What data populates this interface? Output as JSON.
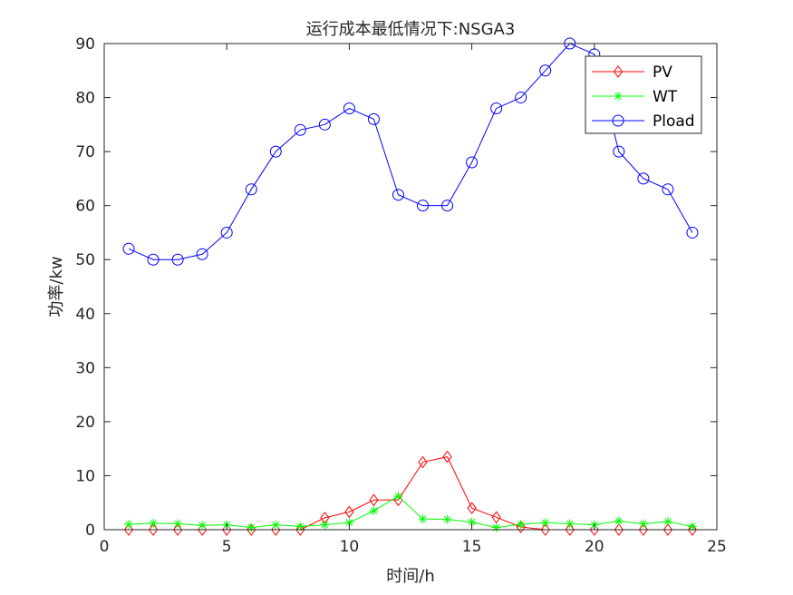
{
  "chart_data": {
    "type": "line",
    "title": "运行成本最低情况下:NSGA3",
    "xlabel": "时间/h",
    "ylabel": "功率/kw",
    "xlim": [
      0,
      25
    ],
    "ylim": [
      0,
      90
    ],
    "xticks": [
      "0",
      "5",
      "10",
      "15",
      "20",
      "25"
    ],
    "yticks": [
      "0",
      "10",
      "20",
      "30",
      "40",
      "50",
      "60",
      "70",
      "80",
      "90"
    ],
    "grid": false,
    "legend_position": "top-right",
    "x": [
      1,
      2,
      3,
      4,
      5,
      6,
      7,
      8,
      9,
      10,
      11,
      12,
      13,
      14,
      15,
      16,
      17,
      18,
      19,
      20,
      21,
      22,
      23,
      24
    ],
    "series": [
      {
        "name": "PV",
        "color": "#ff0000",
        "marker": "diamond",
        "values": [
          0,
          0,
          0,
          0,
          0,
          0,
          0,
          0,
          2.2,
          3.3,
          5.5,
          5.5,
          12.5,
          13.5,
          4,
          2.3,
          0.5,
          0,
          0,
          0,
          0,
          0,
          0,
          0
        ]
      },
      {
        "name": "WT",
        "color": "#00ff00",
        "marker": "star",
        "values": [
          1,
          1.2,
          1.1,
          0.8,
          0.9,
          0.4,
          0.9,
          0.6,
          0.9,
          1.3,
          3.5,
          6.2,
          2,
          1.9,
          1.4,
          0.4,
          1,
          1.3,
          1.1,
          0.9,
          1.6,
          1.1,
          1.5,
          0.6
        ]
      },
      {
        "name": "Pload",
        "color": "#0000ff",
        "marker": "circle",
        "values": [
          52,
          50,
          50,
          51,
          55,
          63,
          70,
          74,
          75,
          78,
          76,
          62,
          60,
          60,
          68,
          78,
          80,
          85,
          90,
          88,
          70,
          65,
          63,
          55
        ]
      }
    ]
  }
}
